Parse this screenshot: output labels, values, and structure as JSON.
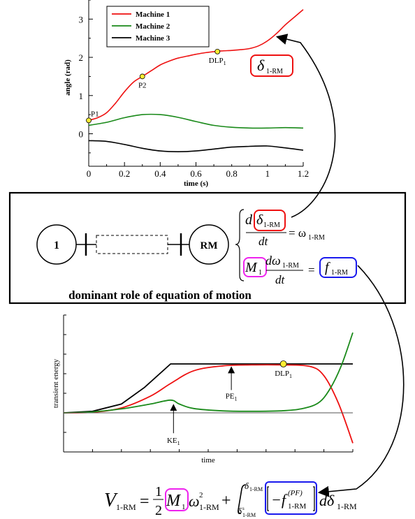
{
  "chart_data": [
    {
      "type": "line",
      "xlabel": "time (s)",
      "ylabel": "angle (rad)",
      "xlim": [
        0,
        1.2
      ],
      "ylim": [
        -0.85,
        3.5
      ],
      "xticks": [
        "0",
        "0.2",
        "0.4",
        "0.6",
        "0.8",
        "1",
        "1.2"
      ],
      "yticks": [
        "0",
        "1",
        "2",
        "3"
      ],
      "legend_position": "top-left",
      "series": [
        {
          "name": "Machine 1",
          "color": "#ee1111",
          "x": [
            0,
            0.05,
            0.1,
            0.15,
            0.2,
            0.25,
            0.3,
            0.35,
            0.4,
            0.45,
            0.5,
            0.55,
            0.6,
            0.65,
            0.7,
            0.75,
            0.8,
            0.85,
            0.9,
            0.95,
            1.0,
            1.05,
            1.1,
            1.15,
            1.2
          ],
          "y": [
            0.35,
            0.42,
            0.55,
            0.8,
            1.1,
            1.35,
            1.5,
            1.65,
            1.8,
            1.9,
            1.98,
            2.03,
            2.08,
            2.12,
            2.15,
            2.17,
            2.18,
            2.2,
            2.23,
            2.3,
            2.43,
            2.62,
            2.85,
            3.05,
            3.25
          ]
        },
        {
          "name": "Machine 2",
          "color": "#1a8a1a",
          "x": [
            0,
            0.1,
            0.2,
            0.3,
            0.4,
            0.5,
            0.6,
            0.7,
            0.8,
            0.9,
            1.0,
            1.1,
            1.2
          ],
          "y": [
            0.22,
            0.3,
            0.42,
            0.5,
            0.5,
            0.43,
            0.32,
            0.22,
            0.17,
            0.15,
            0.15,
            0.16,
            0.15
          ]
        },
        {
          "name": "Machine 3",
          "color": "#000000",
          "x": [
            0,
            0.1,
            0.2,
            0.3,
            0.4,
            0.5,
            0.6,
            0.7,
            0.8,
            0.9,
            1.0,
            1.1,
            1.2
          ],
          "y": [
            -0.18,
            -0.2,
            -0.28,
            -0.38,
            -0.45,
            -0.47,
            -0.45,
            -0.4,
            -0.35,
            -0.33,
            -0.32,
            -0.37,
            -0.43
          ]
        }
      ],
      "annotations": [
        {
          "label": "P1",
          "x": 0.0,
          "y": 0.35
        },
        {
          "label": "P2",
          "x": 0.3,
          "y": 1.5
        },
        {
          "label": "DLP",
          "subscript": "1",
          "x": 0.72,
          "y": 2.15
        }
      ]
    },
    {
      "type": "line",
      "xlabel": "time",
      "ylabel": "transient energy",
      "xlim": [
        0,
        10
      ],
      "ylim": [
        -2,
        5
      ],
      "series": [
        {
          "color": "#000000",
          "x": [
            0,
            1,
            2,
            2.8,
            3.7,
            4.5,
            5.5,
            6.5,
            7.5,
            8.5,
            9.5,
            10
          ],
          "y": [
            0,
            0.08,
            0.45,
            1.3,
            2.5,
            2.5,
            2.5,
            2.5,
            2.5,
            2.5,
            2.5,
            2.5
          ]
        },
        {
          "color": "#ee1111",
          "x": [
            0,
            1,
            2,
            3,
            3.7,
            4.5,
            5.5,
            6.5,
            7.5,
            8.5,
            9,
            9.5,
            10
          ],
          "y": [
            0,
            0.03,
            0.25,
            0.85,
            1.5,
            2.15,
            2.4,
            2.45,
            2.45,
            2.38,
            1.9,
            0.5,
            -1.55
          ]
        },
        {
          "color": "#1a8a1a",
          "x": [
            0,
            1,
            2,
            3,
            3.7,
            4,
            4.5,
            5.5,
            6.5,
            7.5,
            8.2,
            8.8,
            9.2,
            9.6,
            10
          ],
          "y": [
            0,
            0.05,
            0.2,
            0.45,
            0.65,
            0.45,
            0.22,
            0.1,
            0.08,
            0.1,
            0.2,
            0.5,
            1.2,
            2.4,
            4.1
          ]
        },
        {
          "color": "#555555",
          "x": [
            0,
            10
          ],
          "y": [
            0,
            0
          ]
        }
      ],
      "annotations": [
        {
          "label": "PE",
          "subscript": "1",
          "x": 5.8,
          "y": 2.45
        },
        {
          "label": "KE",
          "subscript": "1",
          "x": 3.8,
          "y": 0.6
        },
        {
          "label": "DLP",
          "subscript": "1",
          "x": 7.6,
          "y": 2.5
        }
      ]
    }
  ],
  "system": {
    "left_node": "1",
    "right_node": "RM",
    "caption": "dominant role of equation of motion"
  },
  "equations": {
    "delta_label": "δ",
    "delta_sub": "1-RM",
    "eq1_lhs_d": "d",
    "eq1_den": "dt",
    "eq1_rhs": "= ω",
    "eq1_rhs_sub": "1-RM",
    "eq2_m": "M",
    "eq2_m_sub": "1",
    "eq2_num": "dω",
    "eq2_num_sub": "1-RM",
    "eq2_den": "dt",
    "eq2_eq": "=",
    "eq2_f": "f",
    "eq2_f_sub": "1-RM",
    "v_lhs": "V",
    "v_lhs_sub": "1-RM",
    "v_eq": "=",
    "v_half_num": "1",
    "v_half_den": "2",
    "v_m": "M",
    "v_m_sub": "1",
    "v_omega": "ω",
    "v_omega_sup": "2",
    "v_omega_sub": "1-RM",
    "v_plus": "+",
    "v_int_upper": "δ",
    "v_int_upper_sub": "1-RM",
    "v_int_lower": "δ",
    "v_int_lower_sup": "s",
    "v_int_lower_sub": "1-RM",
    "v_minus_f": "−f",
    "v_f_sup": "(PF)",
    "v_f_sub": "1-RM",
    "v_d": "dδ",
    "v_d_sub": "1-RM"
  },
  "colors": {
    "red_box": "#ee1111",
    "magenta_box": "#ee22ee",
    "blue_box": "#1a1aee"
  }
}
